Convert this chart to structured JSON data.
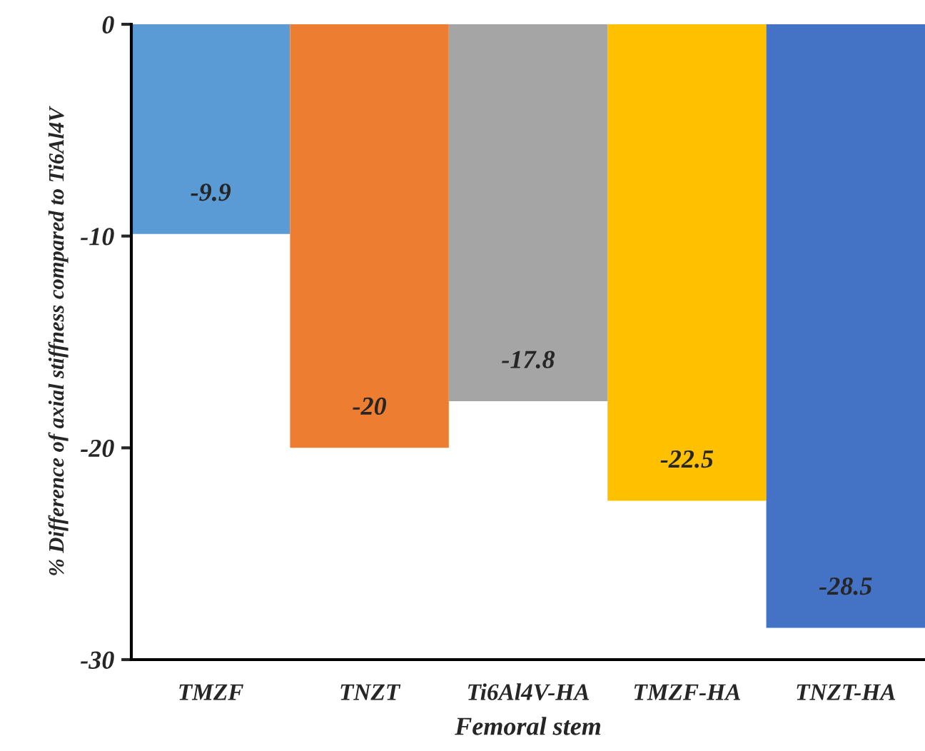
{
  "chart_data": {
    "type": "bar",
    "xlabel": "Femoral stem",
    "ylabel": "% Difference of axial stiffness compared to Ti6Al4V",
    "categories": [
      "TMZF",
      "TNZT",
      "Ti6Al4V-HA",
      "TMZF-HA",
      "TNZT-HA"
    ],
    "values": [
      -9.9,
      -20,
      -17.8,
      -22.5,
      -28.5
    ],
    "colors": [
      "#5b9bd5",
      "#ed7d31",
      "#a5a5a5",
      "#ffc000",
      "#4472c4"
    ],
    "ylim": [
      -30,
      0
    ],
    "yticks": [
      {
        "value": -30,
        "label": "-30"
      },
      {
        "value": -20,
        "label": "-20"
      },
      {
        "value": -10,
        "label": "-10"
      },
      {
        "value": 0,
        "label": "0"
      }
    ],
    "data_labels": true,
    "grid": false,
    "legend": false
  }
}
